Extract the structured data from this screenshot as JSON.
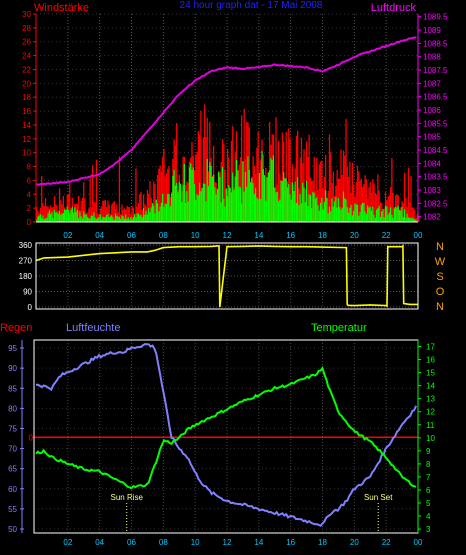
{
  "chart_data": [
    {
      "type": "bar+line",
      "title": "24 hour graph dat - 17 Mai 2008",
      "left_label": "Windstärke",
      "right_label": "Luftdruck",
      "x_ticks": [
        "02",
        "04",
        "06",
        "08",
        "10",
        "12",
        "14",
        "16",
        "18",
        "20",
        "22",
        "00"
      ],
      "left_ticks": [
        "0",
        "2",
        "4",
        "6",
        "8",
        "10",
        "12",
        "14",
        "16",
        "18",
        "20",
        "22",
        "24",
        "26",
        "28",
        "30"
      ],
      "right_ticks": [
        "1082",
        "1082.5",
        "1083",
        "1083.5",
        "1084",
        "1084.5",
        "1085",
        "1085.5",
        "1086",
        "1086.5",
        "1087",
        "1087.5",
        "1088",
        "1088.5",
        "1089",
        "1089.5"
      ],
      "left_ylim": [
        0,
        30
      ],
      "right_ylim": [
        1081.8,
        1089.6
      ],
      "colors": {
        "gust": "#ff0000",
        "speed": "#00ff00",
        "pressure": "#e000e0",
        "left_axis": "#ff0000",
        "right_axis": "#ff00ff"
      },
      "series": [
        {
          "kind": "pressure-line",
          "hours": [
            0,
            2,
            4,
            5,
            6,
            7,
            8,
            9,
            10,
            11,
            12,
            13,
            14,
            15,
            16,
            17,
            18,
            19,
            20,
            21,
            22,
            23,
            24
          ],
          "values": [
            1083.2,
            1083.3,
            1083.6,
            1084.0,
            1084.5,
            1085.2,
            1085.9,
            1086.6,
            1087.1,
            1087.45,
            1087.6,
            1087.55,
            1087.6,
            1087.7,
            1087.65,
            1087.6,
            1087.45,
            1087.7,
            1088.0,
            1088.2,
            1088.4,
            1088.6,
            1088.75
          ]
        },
        {
          "kind": "wind-bars",
          "hours": [
            0,
            2,
            4,
            6,
            7,
            8,
            9,
            10,
            11,
            12,
            13,
            14,
            15,
            16,
            17,
            18,
            19,
            20,
            21,
            22,
            23,
            24
          ],
          "gust": [
            3,
            4,
            3,
            3,
            5,
            9,
            12,
            14,
            14,
            13,
            15,
            15,
            14,
            13,
            11,
            9,
            10,
            8,
            6,
            5,
            4,
            1
          ],
          "speed": [
            1,
            2,
            1,
            1,
            2,
            5,
            7,
            8,
            8,
            7,
            9,
            9,
            8,
            7,
            5,
            4,
            4,
            3,
            2,
            2,
            2,
            0
          ]
        }
      ]
    },
    {
      "type": "line",
      "right_label": "N W S O N",
      "right_letters": [
        "N",
        "W",
        "S",
        "O",
        "N"
      ],
      "x_ticks": [
        "02",
        "04",
        "06",
        "08",
        "10",
        "12",
        "14",
        "16",
        "18",
        "20",
        "22",
        "00"
      ],
      "y_ticks": [
        "0",
        "90",
        "180",
        "270",
        "360"
      ],
      "ylim": [
        0,
        360
      ],
      "colors": {
        "line": "#ffff00",
        "letters": "#ffa000"
      },
      "series": [
        {
          "name": "",
          "hours": [
            0,
            0.5,
            2,
            3,
            4,
            5,
            6,
            7,
            7.5,
            8,
            9,
            10,
            11,
            11.4,
            11.5,
            11.55,
            12,
            13,
            14,
            15,
            16,
            17,
            18,
            19.5,
            19.55,
            19.6,
            20,
            21,
            22,
            22.05,
            22.1,
            23,
            23.05,
            23.1,
            23.5,
            24
          ],
          "values": [
            270,
            285,
            290,
            300,
            310,
            315,
            320,
            320,
            330,
            345,
            350,
            350,
            352,
            355,
            355,
            0,
            350,
            352,
            355,
            352,
            350,
            350,
            348,
            345,
            15,
            10,
            8,
            12,
            8,
            5,
            350,
            350,
            355,
            20,
            15,
            15
          ]
        }
      ]
    },
    {
      "type": "line",
      "left_label": "Regen",
      "humidity_label": "Luftfeuchte",
      "right_label": "Temperatur",
      "annotations": [
        "Sun Rise",
        "Sun Set"
      ],
      "annotation_hours": [
        5.7,
        21.5
      ],
      "x_ticks": [
        "02",
        "04",
        "06",
        "08",
        "10",
        "12",
        "14",
        "16",
        "18",
        "20",
        "22",
        "00"
      ],
      "humidity_ticks": [
        "50",
        "55",
        "60",
        "65",
        "70",
        "75",
        "80",
        "85",
        "90",
        "95"
      ],
      "temperature_ticks": [
        "3",
        "4",
        "5",
        "6",
        "7",
        "8",
        "9",
        "10",
        "11",
        "12",
        "13",
        "14",
        "15",
        "16",
        "17"
      ],
      "rain_marker": "0",
      "humidity_ylim": [
        49,
        97
      ],
      "temperature_ylim": [
        2.7,
        17.5
      ],
      "rain_value": 0,
      "colors": {
        "humidity": "#8080ff",
        "temperature": "#00ff00",
        "rain": "#ff0000"
      },
      "series": [
        {
          "name": "Luftfeuchte",
          "hours": [
            0,
            1,
            1.5,
            2,
            3,
            4,
            5,
            5.5,
            6,
            7,
            7.5,
            8,
            8.5,
            9,
            9.5,
            10,
            10.5,
            11,
            12,
            13,
            14,
            15,
            16,
            17,
            18,
            18.5,
            19,
            19.5,
            20,
            21,
            22,
            23,
            24
          ],
          "values": [
            86,
            85,
            88,
            89,
            91,
            93,
            94,
            94,
            95,
            96,
            95,
            84,
            73,
            70,
            68,
            64,
            61,
            59,
            57,
            56,
            55,
            54,
            53,
            52,
            51,
            54,
            55,
            57,
            60,
            63,
            70,
            76,
            81
          ]
        },
        {
          "name": "Temperatur",
          "hours": [
            0,
            0.5,
            1,
            2,
            3,
            4,
            5,
            6,
            7,
            7.5,
            8,
            8.5,
            9,
            9.5,
            10,
            10.5,
            11,
            12,
            13,
            14,
            15,
            16,
            17,
            17.5,
            18,
            18.5,
            19,
            20,
            21,
            22,
            23,
            24
          ],
          "values": [
            8.8,
            9.0,
            8.5,
            8.0,
            7.6,
            7.4,
            6.8,
            6.2,
            6.4,
            8.0,
            9.8,
            9.6,
            10.0,
            10.6,
            11.0,
            11.3,
            11.6,
            12.2,
            12.8,
            13.3,
            13.8,
            14.1,
            14.6,
            14.8,
            15.3,
            13.5,
            12.0,
            10.5,
            9.7,
            8.5,
            7.0,
            6.1
          ]
        }
      ]
    }
  ]
}
